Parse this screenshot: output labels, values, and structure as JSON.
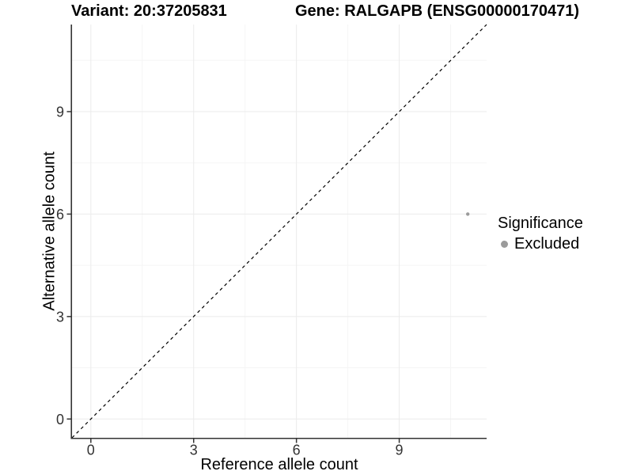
{
  "title": {
    "variant": "Variant: 20:37205831",
    "gene": "Gene: RALGAPB (ENSG00000170471)"
  },
  "axes": {
    "x_label": "Reference allele count",
    "y_label": "Alternative allele count"
  },
  "legend": {
    "title": "Significance",
    "items": [
      {
        "label": "Excluded",
        "color": "#9b9b9b"
      }
    ]
  },
  "colors": {
    "background": "#ffffff",
    "axis_line": "#333333",
    "tick_label": "#333333",
    "grid_major": "#ebebeb",
    "grid_minor": "#f5f5f5",
    "identity_line": "#000000",
    "point": "#9b9b9b"
  },
  "chart_data": {
    "type": "scatter",
    "title": "Variant: 20:37205831   Gene: RALGAPB (ENSG00000170471)",
    "xlabel": "Reference allele count",
    "ylabel": "Alternative allele count",
    "xlim": [
      -0.55,
      11.55
    ],
    "ylim": [
      -0.55,
      11.55
    ],
    "xticks": [
      0,
      3,
      6,
      9
    ],
    "yticks": [
      0,
      3,
      6,
      9
    ],
    "minor_xticks": [
      1.5,
      4.5,
      7.5,
      10.5
    ],
    "minor_yticks": [
      1.5,
      4.5,
      7.5,
      10.5
    ],
    "grid": "on",
    "legend_position": "right",
    "reference_line": {
      "kind": "identity y=x",
      "style": "dashed",
      "color": "#000000"
    },
    "series": [
      {
        "name": "Excluded",
        "color": "#9b9b9b",
        "marker": "circle",
        "points": [
          {
            "x": 11,
            "y": 6
          }
        ]
      }
    ]
  }
}
